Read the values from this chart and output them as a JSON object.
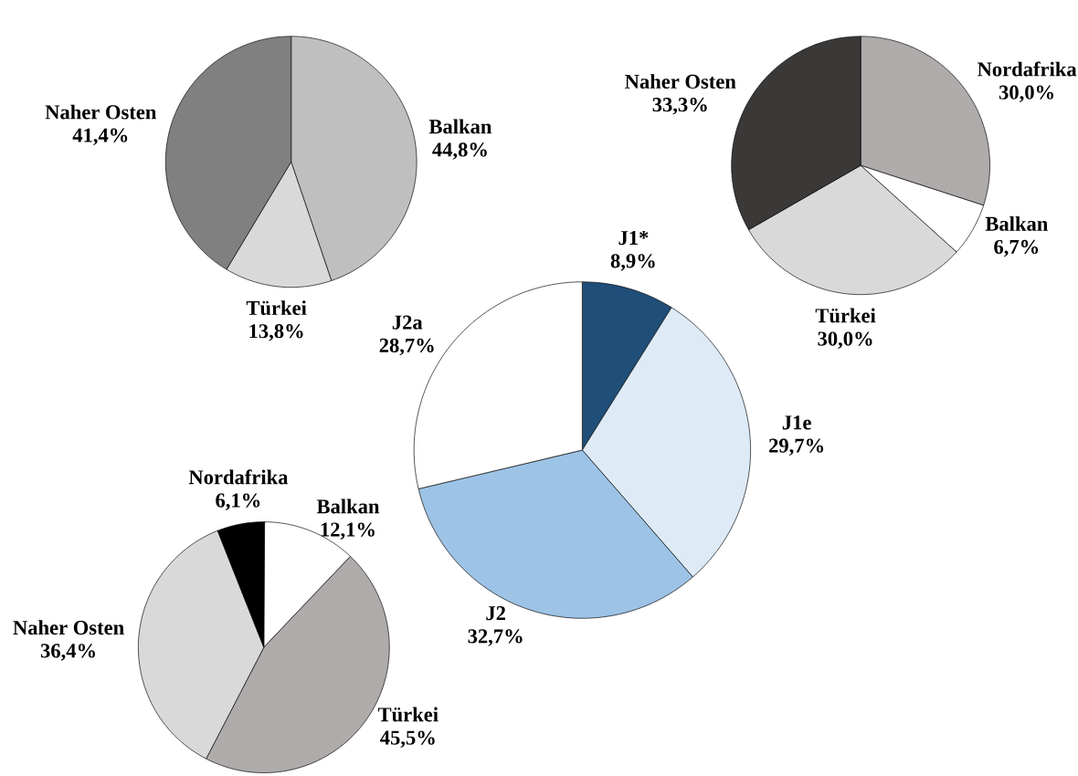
{
  "chart_data": [
    {
      "type": "pie",
      "categories": [
        "J1*",
        "J1e",
        "J2",
        "J2a"
      ],
      "values": [
        8.9,
        29.7,
        32.7,
        28.7
      ],
      "value_labels": [
        "8,9%",
        "29,7%",
        "32,7%",
        "28,7%"
      ],
      "colors": [
        "#1f4e79",
        "#deebf7",
        "#9dc3e6",
        "#ffffff"
      ]
    },
    {
      "type": "pie",
      "categories": [
        "Balkan",
        "Türkei",
        "Naher Osten"
      ],
      "values": [
        44.8,
        13.8,
        41.4
      ],
      "value_labels": [
        "44,8%",
        "13,8%",
        "41,4%"
      ],
      "colors": [
        "#bfbfbf",
        "#d9d9d9",
        "#808080"
      ]
    },
    {
      "type": "pie",
      "categories": [
        "Nordafrika",
        "Balkan",
        "Türkei",
        "Naher Osten"
      ],
      "values": [
        30.0,
        6.7,
        30.0,
        33.3
      ],
      "value_labels": [
        "30,0%",
        "6,7%",
        "30,0%",
        "33,3%"
      ],
      "colors": [
        "#afabab",
        "#ffffff",
        "#d9d9d9",
        "#3b3838"
      ]
    },
    {
      "type": "pie",
      "categories": [
        "Balkan",
        "Türkei",
        "Naher Osten",
        "Nordafrika"
      ],
      "values": [
        12.1,
        45.5,
        36.4,
        6.1
      ],
      "value_labels": [
        "12,1%",
        "45,5%",
        "36,4%",
        "6,1%"
      ],
      "colors": [
        "#ffffff",
        "#afabab",
        "#d9d9d9",
        "#000000"
      ]
    }
  ]
}
